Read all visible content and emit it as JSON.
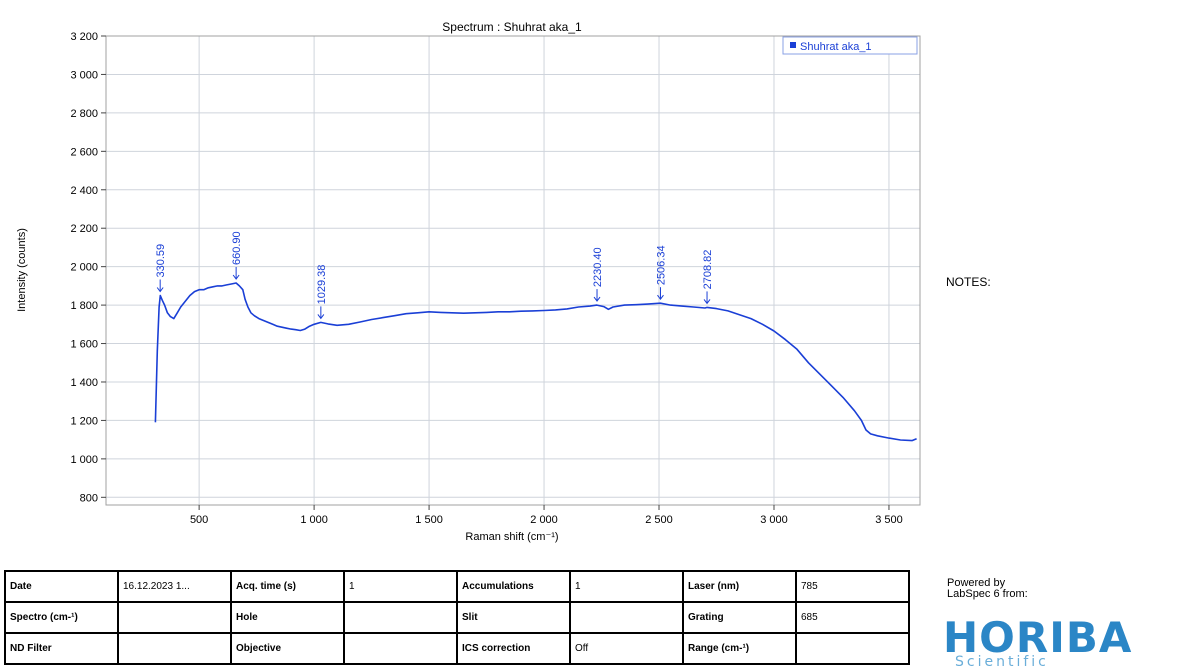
{
  "chart_data": {
    "type": "line",
    "title": "Spectrum : Shuhrat aka_1",
    "xlabel": "Raman shift (cm⁻¹)",
    "ylabel": "Intensity (counts)",
    "xlim": [
      95,
      3635
    ],
    "ylim": [
      760,
      3200
    ],
    "x_ticks": [
      500,
      1000,
      1500,
      2000,
      2500,
      3000,
      3500
    ],
    "x_tick_labels": [
      "500",
      "1 000",
      "1 500",
      "2 000",
      "2 500",
      "3 000",
      "3 500"
    ],
    "y_ticks": [
      800,
      1000,
      1200,
      1400,
      1600,
      1800,
      2000,
      2200,
      2400,
      2600,
      2800,
      3000,
      3200
    ],
    "y_tick_labels": [
      "800",
      "1 000",
      "1 200",
      "1 400",
      "1 600",
      "1 800",
      "2 000",
      "2 200",
      "2 400",
      "2 600",
      "2 800",
      "3 000",
      "3 200"
    ],
    "grid": true,
    "legend_position": "top-right",
    "series": [
      {
        "name": "Shuhrat aka_1",
        "color": "#1a3fd6",
        "x": [
          310,
          318,
          326,
          331,
          340,
          350,
          362,
          375,
          390,
          405,
          420,
          440,
          460,
          480,
          500,
          520,
          540,
          560,
          580,
          600,
          620,
          640,
          661,
          675,
          690,
          700,
          712,
          725,
          740,
          760,
          780,
          800,
          820,
          840,
          860,
          880,
          900,
          920,
          940,
          960,
          980,
          1000,
          1029,
          1060,
          1100,
          1150,
          1200,
          1250,
          1300,
          1350,
          1400,
          1450,
          1500,
          1550,
          1600,
          1650,
          1700,
          1750,
          1800,
          1850,
          1900,
          1950,
          2000,
          2050,
          2100,
          2150,
          2200,
          2230,
          2260,
          2280,
          2300,
          2350,
          2400,
          2450,
          2506,
          2550,
          2600,
          2650,
          2700,
          2709,
          2750,
          2800,
          2850,
          2900,
          2950,
          3000,
          3050,
          3100,
          3150,
          3200,
          3250,
          3300,
          3350,
          3380,
          3400,
          3420,
          3450,
          3500,
          3550,
          3600,
          3620
        ],
        "y": [
          1190,
          1560,
          1790,
          1850,
          1825,
          1800,
          1760,
          1740,
          1730,
          1760,
          1790,
          1820,
          1850,
          1870,
          1880,
          1880,
          1890,
          1895,
          1900,
          1900,
          1905,
          1910,
          1915,
          1900,
          1880,
          1830,
          1790,
          1760,
          1745,
          1730,
          1720,
          1710,
          1700,
          1690,
          1685,
          1680,
          1675,
          1672,
          1668,
          1675,
          1690,
          1700,
          1710,
          1702,
          1695,
          1700,
          1712,
          1725,
          1735,
          1745,
          1755,
          1760,
          1765,
          1762,
          1760,
          1758,
          1760,
          1762,
          1765,
          1765,
          1768,
          1770,
          1772,
          1775,
          1780,
          1790,
          1795,
          1800,
          1792,
          1778,
          1790,
          1800,
          1802,
          1805,
          1810,
          1800,
          1795,
          1790,
          1785,
          1788,
          1782,
          1770,
          1750,
          1730,
          1700,
          1665,
          1620,
          1570,
          1500,
          1440,
          1380,
          1320,
          1250,
          1200,
          1150,
          1130,
          1120,
          1108,
          1098,
          1095,
          1105
        ]
      }
    ],
    "annotations": [
      {
        "label": "330.59",
        "x": 330.59,
        "y": 1850
      },
      {
        "label": "660.90",
        "x": 660.9,
        "y": 1915
      },
      {
        "label": "1029.38",
        "x": 1029.38,
        "y": 1710
      },
      {
        "label": "2230.40",
        "x": 2230.4,
        "y": 1800
      },
      {
        "label": "2506.34",
        "x": 2506.34,
        "y": 1810
      },
      {
        "label": "2708.82",
        "x": 2708.82,
        "y": 1788
      }
    ]
  },
  "notes_label": "NOTES:",
  "info_table": [
    [
      {
        "label": "Date",
        "value": "16.12.2023 1..."
      },
      {
        "label": "Acq. time (s)",
        "value": "1"
      },
      {
        "label": "Accumulations",
        "value": "1"
      },
      {
        "label": "Laser (nm)",
        "value": "785"
      }
    ],
    [
      {
        "label": "Spectro (cm-¹)",
        "value": ""
      },
      {
        "label": "Hole",
        "value": ""
      },
      {
        "label": "Slit",
        "value": ""
      },
      {
        "label": "Grating",
        "value": "685"
      }
    ],
    [
      {
        "label": "ND Filter",
        "value": ""
      },
      {
        "label": "Objective",
        "value": ""
      },
      {
        "label": "ICS correction",
        "value": "Off"
      },
      {
        "label": "Range (cm-¹)",
        "value": ""
      }
    ]
  ],
  "branding": {
    "powered_by": "Powered by",
    "labspec": "LabSpec 6 from:",
    "logo_text": "HORIBA",
    "logo_sub": "Scientific",
    "logo_color": "#2b86c6"
  }
}
